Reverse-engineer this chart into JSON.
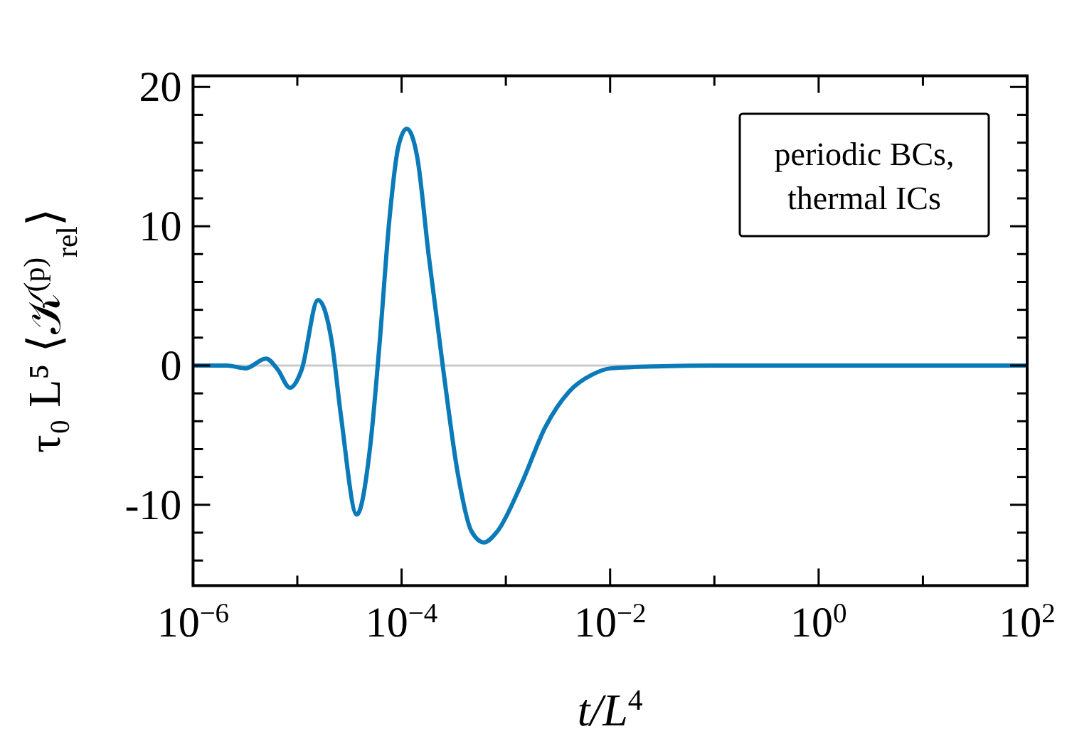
{
  "chart_data": {
    "type": "line",
    "xlabel": "t/L$^{4}$",
    "ylabel": "τ₀ L⁵ ⟨𝒦$^{(p)}$$_{rel}$⟩",
    "log": "x",
    "x": [
      1e-06,
      2.1e-06,
      3.2e-06,
      5e-06,
      6.5e-06,
      8.5e-06,
      1.1e-05,
      1.58e-05,
      2.14e-05,
      2.63e-05,
      3.72e-05,
      5e-05,
      6.17e-05,
      7.6e-05,
      9.3e-05,
      0.000112,
      0.000141,
      0.000182,
      0.000251,
      0.000347,
      0.000468,
      0.000617,
      0.00083,
      0.00141,
      0.0024,
      0.00407,
      0.00676,
      0.0102,
      0.0316,
      0.1,
      1,
      10,
      100
    ],
    "series": [
      {
        "color": "#0a7ab8",
        "values": [
          0,
          0,
          -0.2,
          0.5,
          -0.3,
          -1.6,
          -0.3,
          4.7,
          1.7,
          -3.7,
          -10.7,
          -5.8,
          1.7,
          10.3,
          15.7,
          17.0,
          15.0,
          7.9,
          -0.3,
          -7.8,
          -11.9,
          -12.7,
          -11.9,
          -8.5,
          -4.4,
          -1.85,
          -0.65,
          -0.2,
          -0.05,
          0,
          0,
          0,
          0
        ]
      }
    ],
    "xlim": [
      1e-06,
      100
    ],
    "xticks": [
      {
        "value": 1e-06,
        "label": "10$^{−6}$"
      },
      {
        "value": 0.0001,
        "label": "10$^{−4}$"
      },
      {
        "value": 0.01,
        "label": "10$^{−2}$"
      },
      {
        "value": 1,
        "label": "10$^{0}$"
      },
      {
        "value": 100,
        "label": "10$^{2}$"
      },
      {
        "value": 1e-05,
        "label": null
      },
      {
        "value": 0.001,
        "label": null
      },
      {
        "value": 0.1,
        "label": null
      },
      {
        "value": 10,
        "label": null
      }
    ],
    "ylim": [
      -15.8,
      20.8
    ],
    "yticks": [
      -10,
      0,
      10,
      20,
      {
        "value": -14,
        "label": null
      },
      {
        "value": -12,
        "label": null
      },
      {
        "value": -8,
        "label": null
      },
      {
        "value": -6,
        "label": null
      },
      {
        "value": -4,
        "label": null
      },
      {
        "value": -2,
        "label": null
      },
      {
        "value": 2,
        "label": null
      },
      {
        "value": 4,
        "label": null
      },
      {
        "value": 6,
        "label": null
      },
      {
        "value": 8,
        "label": null
      },
      {
        "value": 12,
        "label": null
      },
      {
        "value": 14,
        "label": null
      },
      {
        "value": 16,
        "label": null
      },
      {
        "value": 18,
        "label": null
      }
    ],
    "ref_lines": [
      {
        "axis": "y",
        "value": 0,
        "color": "#cccccc"
      }
    ],
    "annotations": [
      "periodic BCs,\nthermal ICs"
    ]
  }
}
